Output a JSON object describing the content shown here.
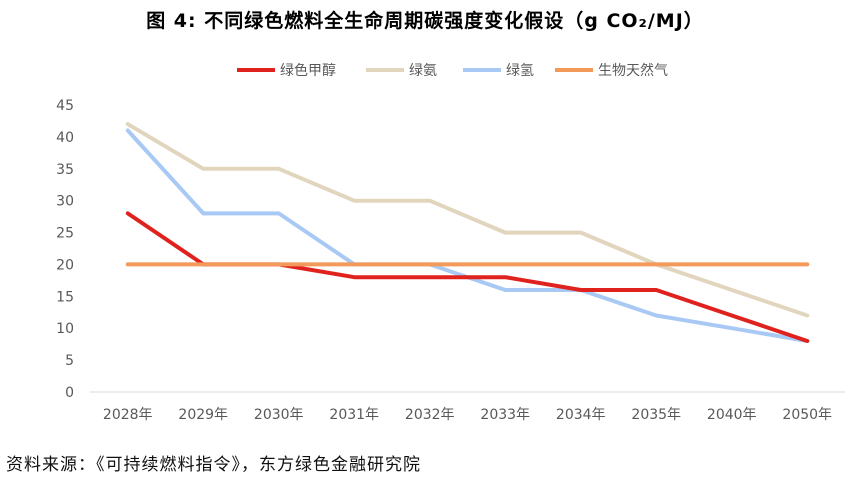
{
  "title": "图 4: 不同绿色燃料全生命周期碳强度变化假设（g CO₂/MJ）",
  "source": "资料来源：《可持续燃料指令》，东方绿色金融研究院",
  "chart_data": {
    "type": "line",
    "categories": [
      "2028年",
      "2029年",
      "2030年",
      "2031年",
      "2032年",
      "2033年",
      "2034年",
      "2035年",
      "2040年",
      "2050年"
    ],
    "ylim": [
      0,
      45
    ],
    "yticks": [
      0,
      5,
      10,
      15,
      20,
      25,
      30,
      35,
      40,
      45
    ],
    "grid": false,
    "legend_position": "top",
    "series": [
      {
        "name": "绿色甲醇",
        "color": "#e0221e",
        "values": [
          28,
          20,
          20,
          18,
          18,
          18,
          16,
          16,
          12,
          8
        ]
      },
      {
        "name": "绿氨",
        "color": "#e2d5be",
        "values": [
          42,
          35,
          35,
          30,
          30,
          25,
          25,
          20,
          16,
          12
        ]
      },
      {
        "name": "绿氢",
        "color": "#a9c9f5",
        "values": [
          41,
          28,
          28,
          20,
          20,
          16,
          16,
          12,
          10,
          8
        ]
      },
      {
        "name": "生物天然气",
        "color": "#f39a5b",
        "values": [
          20,
          20,
          20,
          20,
          20,
          20,
          20,
          20,
          20,
          20
        ]
      }
    ]
  }
}
